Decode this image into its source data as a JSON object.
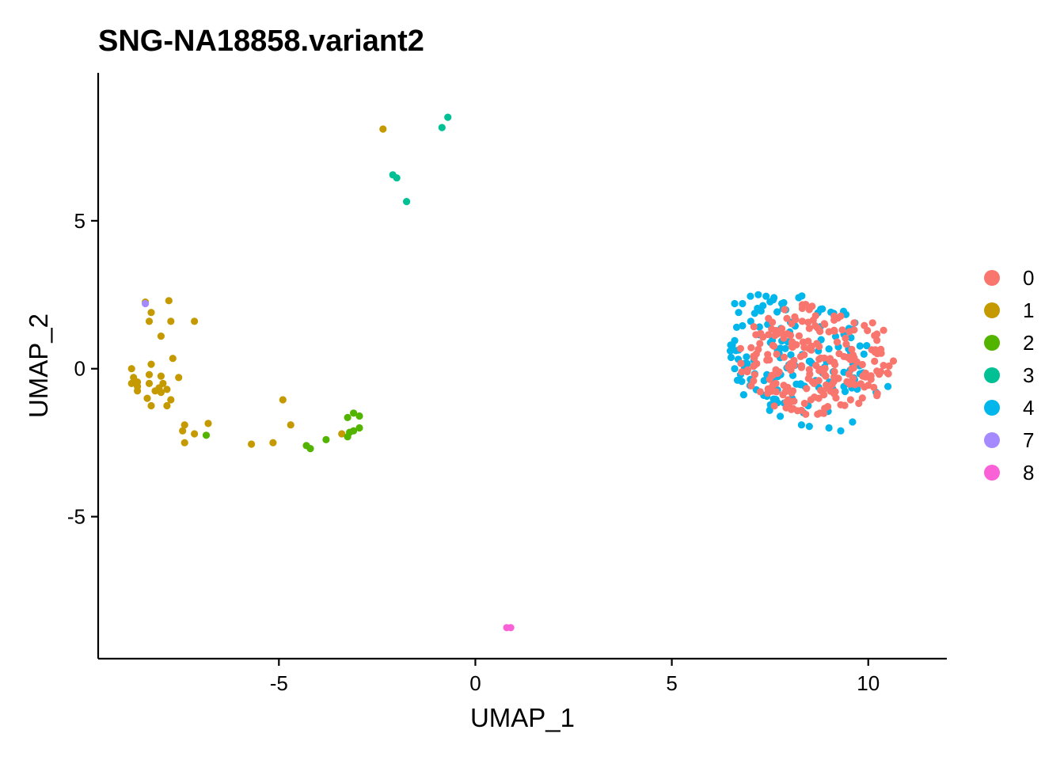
{
  "chart_data": {
    "type": "scatter",
    "title": "SNG-NA18858.variant2",
    "xlabel": "UMAP_1",
    "ylabel": "UMAP_2",
    "xlim": [
      -9.6,
      12.0
    ],
    "ylim": [
      -9.8,
      10.0
    ],
    "xticks": [
      -5,
      0,
      5,
      10
    ],
    "yticks": [
      -5,
      0,
      5
    ],
    "grid": false,
    "legend_position": "right",
    "series": [
      {
        "name": "0",
        "color": "#F8766D",
        "cluster": {
          "cx": 8.7,
          "cy": 0.3,
          "rx": 2.0,
          "ry": 1.9,
          "n": 230,
          "seed": 11
        },
        "points": []
      },
      {
        "name": "1",
        "color": "#C49A00",
        "points": [
          [
            -2.35,
            8.1
          ],
          [
            -8.4,
            2.25
          ],
          [
            -7.8,
            2.3
          ],
          [
            -8.25,
            1.9
          ],
          [
            -7.75,
            1.6
          ],
          [
            -8.3,
            1.6
          ],
          [
            -7.15,
            1.6
          ],
          [
            -8.0,
            1.1
          ],
          [
            -7.7,
            0.35
          ],
          [
            -8.25,
            0.15
          ],
          [
            -8.75,
            0.0
          ],
          [
            -8.3,
            -0.2
          ],
          [
            -8.0,
            -0.25
          ],
          [
            -7.55,
            -0.3
          ],
          [
            -8.7,
            -0.3
          ],
          [
            -8.6,
            -0.45
          ],
          [
            -8.75,
            -0.5
          ],
          [
            -8.3,
            -0.5
          ],
          [
            -7.95,
            -0.5
          ],
          [
            -8.6,
            -0.6
          ],
          [
            -8.05,
            -0.65
          ],
          [
            -7.85,
            -0.7
          ],
          [
            -8.15,
            -0.75
          ],
          [
            -8.6,
            -0.75
          ],
          [
            -8.0,
            -0.8
          ],
          [
            -8.35,
            -1.0
          ],
          [
            -7.75,
            -1.05
          ],
          [
            -8.25,
            -1.25
          ],
          [
            -7.85,
            -1.25
          ],
          [
            -7.4,
            -1.9
          ],
          [
            -6.8,
            -1.85
          ],
          [
            -7.45,
            -2.1
          ],
          [
            -7.15,
            -2.2
          ],
          [
            -7.4,
            -2.5
          ],
          [
            -5.7,
            -2.55
          ],
          [
            -5.15,
            -2.5
          ],
          [
            -4.9,
            -1.05
          ],
          [
            -4.7,
            -1.9
          ],
          [
            -3.4,
            -2.2
          ]
        ]
      },
      {
        "name": "2",
        "color": "#53B400",
        "points": [
          [
            -6.85,
            -2.25
          ],
          [
            -4.3,
            -2.6
          ],
          [
            -4.2,
            -2.7
          ],
          [
            -3.8,
            -2.4
          ],
          [
            -3.25,
            -2.3
          ],
          [
            -3.2,
            -2.15
          ],
          [
            -3.1,
            -2.1
          ],
          [
            -2.95,
            -2.0
          ],
          [
            -3.25,
            -1.65
          ],
          [
            -3.1,
            -1.5
          ],
          [
            -2.95,
            -1.6
          ]
        ]
      },
      {
        "name": "3",
        "color": "#00C094",
        "points": [
          [
            -0.7,
            8.5
          ],
          [
            -0.85,
            8.15
          ],
          [
            -2.1,
            6.55
          ],
          [
            -2.0,
            6.45
          ],
          [
            -1.75,
            5.65
          ]
        ]
      },
      {
        "name": "4",
        "color": "#00B6EB",
        "cluster": {
          "cx": 8.2,
          "cy": 0.4,
          "rx": 1.8,
          "ry": 2.1,
          "n": 130,
          "seed": 29
        },
        "points": [
          [
            6.6,
            2.2
          ],
          [
            6.8,
            2.2
          ],
          [
            7.0,
            2.45
          ],
          [
            7.2,
            2.5
          ],
          [
            7.4,
            2.45
          ],
          [
            7.6,
            2.4
          ],
          [
            7.8,
            2.2
          ],
          [
            6.7,
            1.9
          ],
          [
            6.65,
            1.4
          ],
          [
            6.6,
            0.95
          ],
          [
            6.5,
            0.8
          ],
          [
            6.6,
            0.0
          ],
          [
            6.75,
            -0.2
          ],
          [
            8.3,
            -1.9
          ],
          [
            8.5,
            -1.95
          ],
          [
            9.0,
            -2.0
          ],
          [
            9.3,
            -2.1
          ],
          [
            9.6,
            -1.8
          ],
          [
            10.2,
            -0.8
          ],
          [
            10.5,
            -0.6
          ]
        ]
      },
      {
        "name": "7",
        "color": "#A58AFF",
        "points": [
          [
            -8.4,
            2.2
          ]
        ]
      },
      {
        "name": "8",
        "color": "#FB61D7",
        "points": [
          [
            0.8,
            -8.75
          ],
          [
            0.9,
            -8.75
          ]
        ]
      }
    ]
  }
}
